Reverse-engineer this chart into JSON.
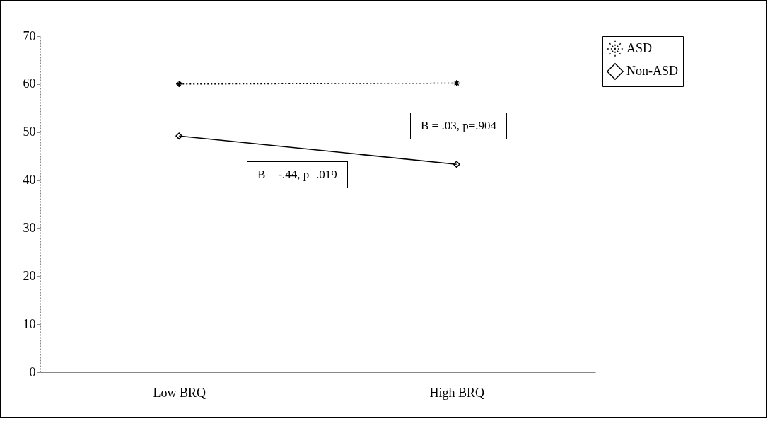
{
  "chart_data": {
    "type": "line",
    "categories": [
      "Low BRQ",
      "High BRQ"
    ],
    "series": [
      {
        "name": "ASD",
        "color": "#000000",
        "values": [
          60,
          60.2
        ],
        "marker": "cross",
        "line_style": "dotted"
      },
      {
        "name": "Non-ASD",
        "color": "#000000",
        "values": [
          49.2,
          43.3
        ],
        "marker": "diamond",
        "line_style": "solid"
      }
    ],
    "ylim": [
      0,
      70
    ],
    "yticks": [
      0,
      10,
      20,
      30,
      40,
      50,
      60,
      70
    ],
    "legend": "right",
    "annotations": [
      "B = .03, p=.904",
      "B = -.44, p=.019"
    ]
  }
}
